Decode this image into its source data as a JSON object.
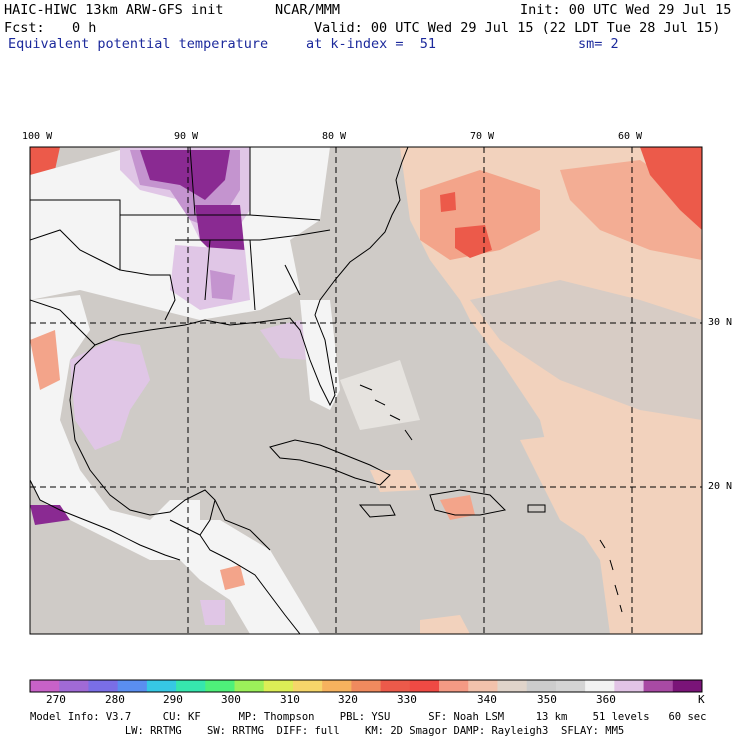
{
  "header": {
    "model_title": "HAIC-HIWC 13km ARW-GFS init",
    "org": "NCAR/MMM",
    "init": "Init: 00 UTC Wed 29 Jul 15",
    "fcst_label": "Fcst:",
    "fcst_value": "0 h",
    "valid": "Valid: 00 UTC Wed 29 Jul 15 (22 LDT Tue 28 Jul 15)",
    "field_name": "Equivalent potential temperature",
    "level": "at k-index =  51",
    "smooth": "sm= 2"
  },
  "map": {
    "lon_labels": [
      "100 W",
      "90 W",
      "80 W",
      "70 W",
      "60 W"
    ],
    "lat_labels": [
      "30 N",
      "20 N"
    ],
    "colors": {
      "ocean_gray": "#cfcbc7",
      "warm_pale": "#f2d2bd",
      "warm_salmon": "#f3a48a",
      "warm_red": "#ec5a4a",
      "cool_pale": "#e0c6e6",
      "cool_mid": "#c494cf",
      "cool_deep": "#8a2a92",
      "land_white": "#f4f4f4",
      "border": "#000000",
      "grid": "#000000"
    }
  },
  "colorbar": {
    "colors": [
      "#c862c8",
      "#a06ad6",
      "#7a6ee6",
      "#5a8ef0",
      "#36c8e4",
      "#36e6ae",
      "#4ef07a",
      "#9cf05a",
      "#dcee56",
      "#f6d66a",
      "#f6b25e",
      "#f08a5e",
      "#ec5a4a",
      "#ef4a44",
      "#f49a84",
      "#f2c2ac",
      "#e0d4ca",
      "#cccccc",
      "#d4d4d4",
      "#f2f2f2",
      "#e2c4e6",
      "#a84aa4",
      "#7a1478"
    ],
    "labels": [
      "270",
      "280",
      "290",
      "300",
      "310",
      "320",
      "330",
      "340",
      "350",
      "360"
    ],
    "unit": "K"
  },
  "footer": {
    "line1": "Model Info: V3.7     CU: KF      MP: Thompson    PBL: YSU      SF: Noah LSM     13 km    51 levels   60 sec",
    "line2": "               LW: RRTMG    SW: RRTMG  DIFF: full    KM: 2D Smagor DAMP: Rayleigh3  SFLAY: MM5"
  }
}
